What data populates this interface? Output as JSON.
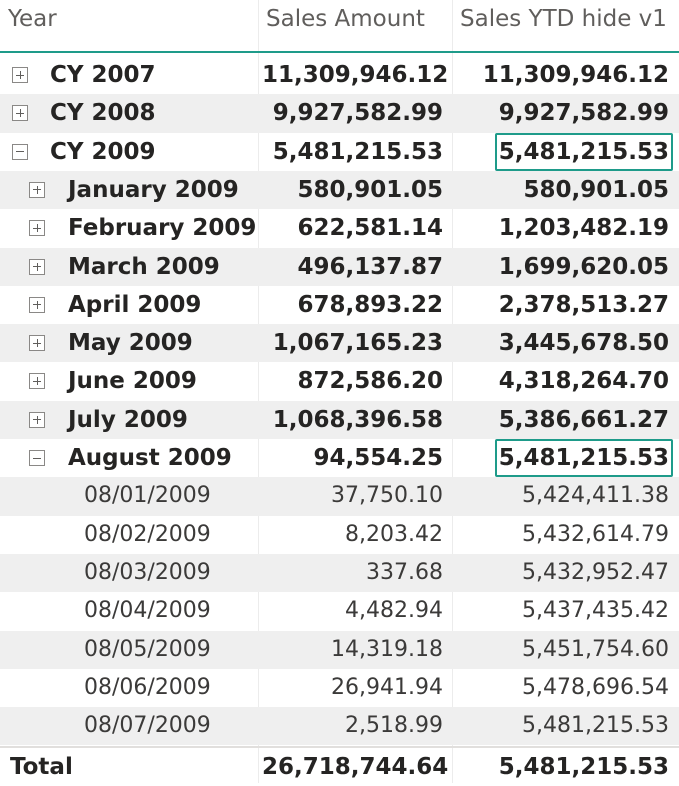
{
  "columns": {
    "year": "Year",
    "sales_amount": "Sales Amount",
    "sales_ytd": "Sales YTD hide v1"
  },
  "rows": [
    {
      "level": 0,
      "toggle": "expand",
      "label": "CY 2007",
      "sales": "11,309,946.12",
      "ytd": "11,309,946.12",
      "bold": true,
      "highlight": false
    },
    {
      "level": 0,
      "toggle": "expand",
      "label": "CY 2008",
      "sales": "9,927,582.99",
      "ytd": "9,927,582.99",
      "bold": true,
      "highlight": false
    },
    {
      "level": 0,
      "toggle": "collapse",
      "label": "CY 2009",
      "sales": "5,481,215.53",
      "ytd": "5,481,215.53",
      "bold": true,
      "highlight": true
    },
    {
      "level": 1,
      "toggle": "expand",
      "label": "January 2009",
      "sales": "580,901.05",
      "ytd": "580,901.05",
      "bold": true,
      "highlight": false
    },
    {
      "level": 1,
      "toggle": "expand",
      "label": "February 2009",
      "sales": "622,581.14",
      "ytd": "1,203,482.19",
      "bold": true,
      "highlight": false
    },
    {
      "level": 1,
      "toggle": "expand",
      "label": "March 2009",
      "sales": "496,137.87",
      "ytd": "1,699,620.05",
      "bold": true,
      "highlight": false
    },
    {
      "level": 1,
      "toggle": "expand",
      "label": "April 2009",
      "sales": "678,893.22",
      "ytd": "2,378,513.27",
      "bold": true,
      "highlight": false
    },
    {
      "level": 1,
      "toggle": "expand",
      "label": "May 2009",
      "sales": "1,067,165.23",
      "ytd": "3,445,678.50",
      "bold": true,
      "highlight": false
    },
    {
      "level": 1,
      "toggle": "expand",
      "label": "June 2009",
      "sales": "872,586.20",
      "ytd": "4,318,264.70",
      "bold": true,
      "highlight": false
    },
    {
      "level": 1,
      "toggle": "expand",
      "label": "July 2009",
      "sales": "1,068,396.58",
      "ytd": "5,386,661.27",
      "bold": true,
      "highlight": false
    },
    {
      "level": 1,
      "toggle": "collapse",
      "label": "August 2009",
      "sales": "94,554.25",
      "ytd": "5,481,215.53",
      "bold": true,
      "highlight": true
    },
    {
      "level": 2,
      "toggle": "none",
      "label": "08/01/2009",
      "sales": "37,750.10",
      "ytd": "5,424,411.38",
      "bold": false,
      "highlight": false
    },
    {
      "level": 2,
      "toggle": "none",
      "label": "08/02/2009",
      "sales": "8,203.42",
      "ytd": "5,432,614.79",
      "bold": false,
      "highlight": false
    },
    {
      "level": 2,
      "toggle": "none",
      "label": "08/03/2009",
      "sales": "337.68",
      "ytd": "5,432,952.47",
      "bold": false,
      "highlight": false
    },
    {
      "level": 2,
      "toggle": "none",
      "label": "08/04/2009",
      "sales": "4,482.94",
      "ytd": "5,437,435.42",
      "bold": false,
      "highlight": false
    },
    {
      "level": 2,
      "toggle": "none",
      "label": "08/05/2009",
      "sales": "14,319.18",
      "ytd": "5,451,754.60",
      "bold": false,
      "highlight": false
    },
    {
      "level": 2,
      "toggle": "none",
      "label": "08/06/2009",
      "sales": "26,941.94",
      "ytd": "5,478,696.54",
      "bold": false,
      "highlight": false
    },
    {
      "level": 2,
      "toggle": "none",
      "label": "08/07/2009",
      "sales": "2,518.99",
      "ytd": "5,481,215.53",
      "bold": false,
      "highlight": false
    }
  ],
  "total": {
    "label": "Total",
    "sales": "26,718,744.64",
    "ytd": "5,481,215.53"
  },
  "colors": {
    "accent": "#1e9b8a",
    "row_alt": "#efefef",
    "header_text": "#605e5c",
    "body_text": "#252423"
  }
}
